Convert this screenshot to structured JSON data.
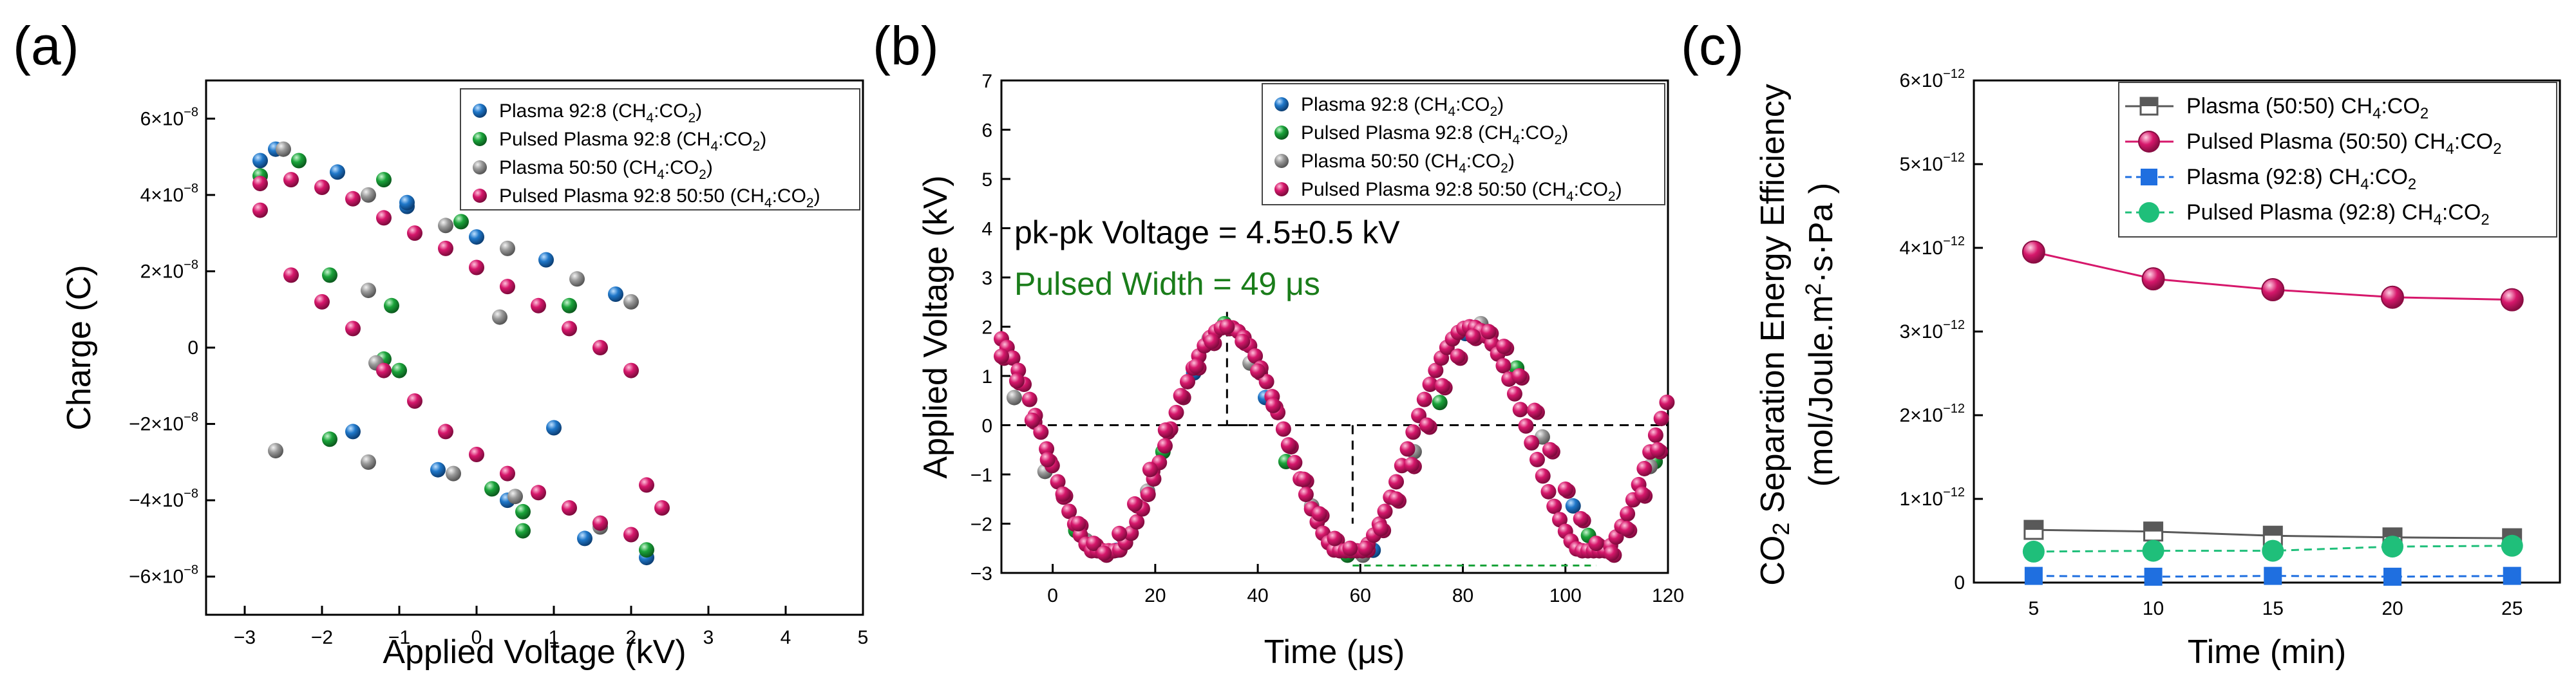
{
  "figure": {
    "panels": [
      "(a)",
      "(b)",
      "(c)"
    ]
  },
  "colors": {
    "plasma_92_8": "#1f77c9",
    "pulsed_92_8": "#1aa33a",
    "plasma_50_50": "#9a9a9a",
    "pulsed_50_50": "#d6176b",
    "c_plasma_50_50": "#595959",
    "c_pulsed_50_50": "#d6176b",
    "c_plasma_92_8": "#1f6fe0",
    "c_pulsed_92_8": "#1fbf7a"
  },
  "chart_data": [
    {
      "panel": "(a)",
      "type": "scatter",
      "xlabel": "Applied Voltage (kV)",
      "ylabel": "Charge (C)",
      "xlim": [
        -3.5,
        5
      ],
      "ylim": [
        -7e-08,
        7e-08
      ],
      "xticks": [
        -3,
        -2,
        -1,
        0,
        1,
        2,
        3,
        4,
        5
      ],
      "xtick_labels": [
        "−3",
        "−2",
        "−1",
        "0",
        "1",
        "2",
        "3",
        "4",
        "5"
      ],
      "yticks": [
        -6e-08,
        -4e-08,
        -2e-08,
        0,
        2e-08,
        4e-08,
        6e-08
      ],
      "ytick_labels": [
        {
          "base": "−6×10",
          "exp": "−8"
        },
        {
          "base": "−4×10",
          "exp": "−8"
        },
        {
          "base": "−2×10",
          "exp": "−8"
        },
        {
          "base": "0",
          "exp": ""
        },
        {
          "base": "2×10",
          "exp": "−8"
        },
        {
          "base": "4×10",
          "exp": "−8"
        },
        {
          "base": "6×10",
          "exp": "−8"
        }
      ],
      "legend": [
        {
          "parts": [
            "Plasma 92:8 (CH",
            "4",
            ":CO",
            "2",
            ")"
          ],
          "color_key": "plasma_92_8"
        },
        {
          "parts": [
            "Pulsed Plasma 92:8 (CH",
            "4",
            ":CO",
            "2",
            ")"
          ],
          "color_key": "pulsed_92_8"
        },
        {
          "parts": [
            "Plasma 50:50 (CH",
            "4",
            ":CO",
            "2",
            ")"
          ],
          "color_key": "plasma_50_50"
        },
        {
          "parts": [
            "Pulsed Plasma 92:8 50:50 (CH",
            "4",
            ":CO",
            "2",
            ")"
          ],
          "color_key": "pulsed_50_50"
        }
      ],
      "series": [
        {
          "name": "Plasma 92:8",
          "color_key": "plasma_92_8",
          "x": [
            -2.6,
            -1.8,
            -0.9,
            0.0,
            0.9,
            1.8,
            -2.8,
            -1.6,
            -0.5,
            0.4,
            1.4,
            2.2,
            -0.9,
            1.0
          ],
          "y": [
            5.2e-08,
            4.6e-08,
            3.7e-08,
            2.9e-08,
            2.3e-08,
            1.4e-08,
            4.9e-08,
            -2.2e-08,
            -3.2e-08,
            -4e-08,
            -5e-08,
            -5.5e-08,
            3.8e-08,
            -2.1e-08
          ]
        },
        {
          "name": "Pulsed Plasma 92:8",
          "color_key": "pulsed_92_8",
          "x": [
            -2.3,
            -1.9,
            -1.2,
            -0.2,
            0.6,
            1.6,
            -2.8,
            -1.9,
            -1.1,
            0.2,
            0.6,
            1.2,
            2.2,
            -1.2,
            -1.0
          ],
          "y": [
            4.9e-08,
            1.9e-08,
            4.4e-08,
            3.3e-08,
            -4.3e-08,
            -4.6e-08,
            4.5e-08,
            -2.4e-08,
            1.1e-08,
            -3.7e-08,
            -4.8e-08,
            1.1e-08,
            -5.3e-08,
            -3e-09,
            -6e-09
          ]
        },
        {
          "name": "Plasma 50:50",
          "color_key": "plasma_50_50",
          "x": [
            -2.5,
            -1.4,
            -0.4,
            0.4,
            1.3,
            2.0,
            -2.6,
            -1.4,
            -0.3,
            0.5,
            1.6,
            -1.3,
            0.3,
            -1.4
          ],
          "y": [
            5.2e-08,
            4e-08,
            3.2e-08,
            2.6e-08,
            1.8e-08,
            1.2e-08,
            -2.7e-08,
            -3e-08,
            -3.3e-08,
            -3.9e-08,
            -4.7e-08,
            -4e-09,
            8e-09,
            1.5e-08
          ]
        },
        {
          "name": "Pulsed Plasma 92:8 50:50",
          "color_key": "pulsed_50_50",
          "x": [
            -2.8,
            -2.4,
            -2.0,
            -1.6,
            -1.2,
            -0.8,
            -0.4,
            0.0,
            0.4,
            0.8,
            1.2,
            1.6,
            2.0,
            2.4,
            -2.8,
            -2.4,
            -2.0,
            -1.6,
            -1.2,
            -0.8,
            -0.4,
            0.0,
            0.4,
            0.8,
            1.2,
            1.6,
            2.0,
            2.2
          ],
          "y": [
            4.3e-08,
            4.4e-08,
            4.2e-08,
            3.9e-08,
            3.4e-08,
            3e-08,
            2.6e-08,
            2.1e-08,
            1.6e-08,
            1.1e-08,
            5e-09,
            0.0,
            -6e-09,
            -4.2e-08,
            3.6e-08,
            1.9e-08,
            1.2e-08,
            5e-09,
            -6e-09,
            -1.4e-08,
            -2.2e-08,
            -2.8e-08,
            -3.3e-08,
            -3.8e-08,
            -4.2e-08,
            -4.6e-08,
            -4.9e-08,
            -3.6e-08
          ]
        }
      ]
    },
    {
      "panel": "(b)",
      "type": "scatter",
      "xlabel": "Time (μs)",
      "ylabel": "Applied Voltage (kV)",
      "xlim": [
        -10,
        120
      ],
      "ylim": [
        -3,
        7
      ],
      "xticks": [
        0,
        20,
        40,
        60,
        80,
        100,
        120
      ],
      "xtick_labels": [
        "0",
        "20",
        "40",
        "60",
        "80",
        "100",
        "120"
      ],
      "yticks": [
        -3,
        -2,
        -1,
        0,
        1,
        2,
        3,
        4,
        5,
        6,
        7
      ],
      "ytick_labels": [
        "−3",
        "−2",
        "−1",
        "0",
        "1",
        "2",
        "3",
        "4",
        "5",
        "6",
        "7"
      ],
      "annotations": {
        "pkpk": "pk-pk Voltage = 4.5±0.5 kV",
        "width": "Pulsed Width = 49 μs"
      },
      "legend": [
        {
          "parts": [
            "Plasma 92:8 (CH",
            "4",
            ":CO",
            "2",
            ")"
          ],
          "color_key": "plasma_92_8"
        },
        {
          "parts": [
            "Pulsed Plasma 92:8 (CH",
            "4",
            ":CO",
            "2",
            ")"
          ],
          "color_key": "pulsed_92_8"
        },
        {
          "parts": [
            "Plasma 50:50 (CH",
            "4",
            ":CO",
            "2",
            ")"
          ],
          "color_key": "plasma_50_50"
        },
        {
          "parts": [
            "Pulsed Plasma 92:8 50:50 (CH",
            "4",
            ":CO",
            "2",
            ")"
          ],
          "color_key": "pulsed_50_50"
        }
      ],
      "wave": {
        "period_us": 47.5,
        "amplitude_kV": 2.35,
        "offset_kV": -0.35,
        "phase_peak_us": 34
      },
      "series": [
        {
          "name": "Pulsed Plasma 92:8 50:50",
          "color_key": "pulsed_50_50",
          "x": [
            -10,
            -7,
            -4,
            -1,
            2,
            5,
            8,
            10,
            13,
            16,
            19,
            22,
            25,
            28,
            31,
            34,
            37,
            40,
            43,
            46,
            49,
            52,
            55,
            58,
            61,
            64,
            67,
            70,
            73,
            76,
            79,
            82,
            85,
            88,
            91,
            94,
            97,
            100,
            103,
            106,
            109,
            112,
            115,
            118
          ],
          "y": [
            1.4,
            0.9,
            0.1,
            -0.7,
            -1.4,
            -2.0,
            -2.4,
            -2.6,
            -2.2,
            -1.6,
            -0.9,
            -0.1,
            0.6,
            1.2,
            1.7,
            2.0,
            1.7,
            1.1,
            0.4,
            -0.4,
            -1.1,
            -1.8,
            -2.3,
            -2.5,
            -2.5,
            -2.1,
            -1.5,
            -0.8,
            0.0,
            0.8,
            1.4,
            1.8,
            1.9,
            1.6,
            1.0,
            0.3,
            -0.5,
            -1.3,
            -1.9,
            -2.4,
            -2.6,
            -2.1,
            -1.4,
            -0.5
          ]
        },
        {
          "name": "Plasma 50:50",
          "color_key": "plasma_50_50",
          "x": [
            -8,
            -2,
            6,
            18,
            30,
            38,
            50,
            60,
            70,
            83,
            95,
            107,
            116
          ],
          "y": [
            0.6,
            -0.9,
            -2.3,
            -1.3,
            1.8,
            1.3,
            -1.6,
            -2.6,
            -0.5,
            2.1,
            -0.2,
            -2.5,
            -0.8
          ]
        },
        {
          "name": "Pulsed Plasma 92:8",
          "color_key": "pulsed_92_8",
          "x": [
            4,
            21,
            33,
            45,
            57,
            75,
            90,
            104,
            117
          ],
          "y": [
            -2.1,
            -0.5,
            2.1,
            -0.7,
            -2.6,
            0.5,
            1.2,
            -2.2,
            -0.7
          ]
        },
        {
          "name": "Plasma 92:8",
          "color_key": "plasma_92_8",
          "x": [
            12,
            27,
            41,
            62,
            80,
            101
          ],
          "y": [
            -2.5,
            1.1,
            0.6,
            -2.5,
            1.9,
            -1.6
          ]
        }
      ]
    },
    {
      "panel": "(c)",
      "type": "line",
      "xlabel": "Time (min)",
      "ylabel_line1": {
        "parts": [
          "CO",
          "2",
          " Separation Energy Efficiency"
        ]
      },
      "ylabel_line2": {
        "parts": [
          "(mol/Joule.m",
          "2",
          "·s·Pa )"
        ]
      },
      "xlim": [
        2.5,
        27
      ],
      "ylim": [
        0,
        6e-12
      ],
      "xticks": [
        5,
        10,
        15,
        20,
        25
      ],
      "xtick_labels": [
        "5",
        "10",
        "15",
        "20",
        "25"
      ],
      "yticks": [
        0,
        1e-12,
        2e-12,
        3e-12,
        4e-12,
        5e-12,
        6e-12
      ],
      "ytick_labels": [
        {
          "base": "0",
          "exp": ""
        },
        {
          "base": "1×10",
          "exp": "−12"
        },
        {
          "base": "2×10",
          "exp": "−12"
        },
        {
          "base": "3×10",
          "exp": "−12"
        },
        {
          "base": "4×10",
          "exp": "−12"
        },
        {
          "base": "5×10",
          "exp": "−12"
        },
        {
          "base": "6×10",
          "exp": "−12"
        }
      ],
      "x": [
        5,
        10,
        15,
        20,
        25
      ],
      "series": [
        {
          "name": "Plasma (50:50) CH4:CO2",
          "label_parts": [
            "Plasma (50:50) CH",
            "4",
            ":CO",
            "2"
          ],
          "color_key": "c_plasma_50_50",
          "marker": "square-half",
          "dashed": false,
          "values": [
            6.3e-13,
            6.1e-13,
            5.6e-13,
            5.4e-13,
            5.3e-13
          ]
        },
        {
          "name": "Pulsed Plasma (50:50) CH4:CO2",
          "label_parts": [
            "Pulsed Plasma (50:50) CH",
            "4",
            ":CO",
            "2"
          ],
          "color_key": "c_pulsed_50_50",
          "marker": "sphere",
          "dashed": false,
          "values": [
            3.95e-12,
            3.63e-12,
            3.5e-12,
            3.41e-12,
            3.38e-12
          ]
        },
        {
          "name": "Plasma (92:8) CH4:CO2",
          "label_parts": [
            "Plasma (92:8) CH",
            "4",
            ":CO",
            "2"
          ],
          "color_key": "c_plasma_92_8",
          "marker": "square",
          "dashed": true,
          "values": [
            8e-14,
            7e-14,
            8e-14,
            7e-14,
            8e-14
          ]
        },
        {
          "name": "Pulsed Plasma (92:8) CH4:CO2",
          "label_parts": [
            "Pulsed Plasma (92:8) CH",
            "4",
            ":CO",
            "2"
          ],
          "color_key": "c_pulsed_92_8",
          "marker": "circle",
          "dashed": true,
          "values": [
            3.7e-13,
            3.8e-13,
            3.8e-13,
            4.3e-13,
            4.4e-13
          ]
        }
      ]
    }
  ]
}
